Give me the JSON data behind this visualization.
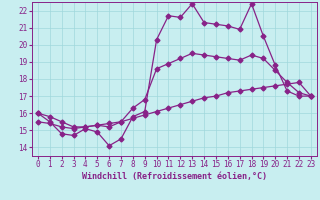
{
  "xlabel": "Windchill (Refroidissement éolien,°C)",
  "bg_color": "#c8eef0",
  "grid_color": "#a0d8dc",
  "line_color": "#882288",
  "xlim": [
    -0.5,
    23.5
  ],
  "ylim": [
    13.5,
    22.5
  ],
  "yticks": [
    14,
    15,
    16,
    17,
    18,
    19,
    20,
    21,
    22
  ],
  "xticks": [
    0,
    1,
    2,
    3,
    4,
    5,
    6,
    7,
    8,
    9,
    10,
    11,
    12,
    13,
    14,
    15,
    16,
    17,
    18,
    19,
    20,
    21,
    22,
    23
  ],
  "line1_x": [
    0,
    1,
    2,
    3,
    4,
    5,
    6,
    7,
    8,
    9,
    10,
    11,
    12,
    13,
    14,
    15,
    16,
    17,
    18,
    19,
    20,
    21,
    22,
    23
  ],
  "line1_y": [
    16.0,
    15.5,
    14.8,
    14.7,
    15.1,
    14.9,
    14.1,
    14.5,
    15.8,
    16.1,
    20.3,
    21.7,
    21.6,
    22.4,
    21.3,
    21.2,
    21.1,
    20.9,
    22.4,
    20.5,
    18.8,
    17.3,
    17.0,
    17.0
  ],
  "line2_x": [
    0,
    1,
    2,
    3,
    4,
    5,
    6,
    7,
    8,
    9,
    10,
    11,
    12,
    13,
    14,
    15,
    16,
    17,
    18,
    19,
    20,
    21,
    22,
    23
  ],
  "line2_y": [
    16.0,
    15.8,
    15.5,
    15.2,
    15.2,
    15.3,
    15.2,
    15.5,
    16.3,
    16.8,
    18.6,
    18.9,
    19.2,
    19.5,
    19.4,
    19.3,
    19.2,
    19.1,
    19.4,
    19.2,
    18.5,
    17.8,
    17.2,
    17.0
  ],
  "line3_x": [
    0,
    1,
    2,
    3,
    4,
    5,
    6,
    7,
    8,
    9,
    10,
    11,
    12,
    13,
    14,
    15,
    16,
    17,
    18,
    19,
    20,
    21,
    22,
    23
  ],
  "line3_y": [
    15.5,
    15.4,
    15.2,
    15.1,
    15.2,
    15.3,
    15.4,
    15.5,
    15.7,
    15.9,
    16.1,
    16.3,
    16.5,
    16.7,
    16.9,
    17.0,
    17.2,
    17.3,
    17.4,
    17.5,
    17.6,
    17.7,
    17.8,
    17.0
  ],
  "xlabel_fontsize": 6,
  "tick_fontsize": 5.5,
  "linewidth": 0.9,
  "markersize": 2.5
}
